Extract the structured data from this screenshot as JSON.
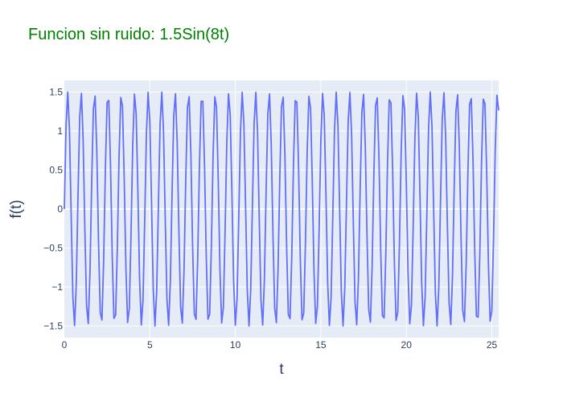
{
  "chart_data": {
    "type": "line",
    "title": "Funcion sin ruido: 1.5Sin(8t)",
    "title_color": "#008000",
    "xlabel": "t",
    "ylabel": "f(t)",
    "xlim": [
      0,
      25.4
    ],
    "ylim": [
      -1.65,
      1.65
    ],
    "x_ticks": [
      0,
      5,
      10,
      15,
      20,
      25
    ],
    "x_tick_labels": [
      "0",
      "5",
      "10",
      "15",
      "20",
      "25"
    ],
    "y_ticks": [
      -1.5,
      -1,
      -0.5,
      0,
      0.5,
      1,
      1.5
    ],
    "y_tick_labels": [
      "−1.5",
      "−1",
      "−0.5",
      "0",
      "0.5",
      "1",
      "1.5"
    ],
    "grid": true,
    "plot_bgcolor": "#e5ecf6",
    "series": [
      {
        "function": "1.5*sin(8*t)",
        "amplitude": 1.5,
        "angular_frequency": 8,
        "t_range": [
          0,
          25.4
        ],
        "sample_step": 0.1,
        "color": "#636efa"
      }
    ]
  }
}
